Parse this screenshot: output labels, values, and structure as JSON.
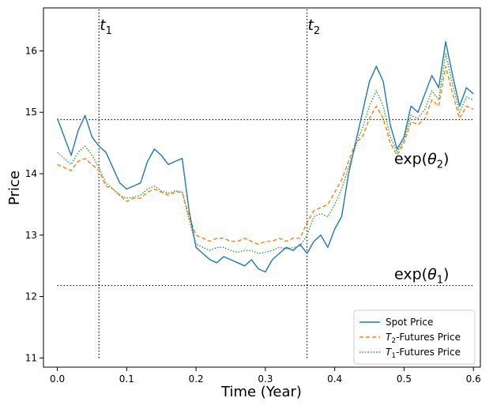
{
  "chart_data": {
    "type": "line",
    "xlabel": "Time (Year)",
    "ylabel": "Price",
    "xlim": [
      -0.02,
      0.61
    ],
    "ylim": [
      10.85,
      16.7
    ],
    "xticks": [
      "0.0",
      "0.1",
      "0.2",
      "0.3",
      "0.4",
      "0.5",
      "0.6"
    ],
    "yticks": [
      "11",
      "12",
      "13",
      "14",
      "15",
      "16"
    ],
    "grid": false,
    "legend_position": "lower-right",
    "vlines": [
      {
        "x": 0.06,
        "label": "t",
        "sub": "1",
        "y_from": 11.0,
        "y_to": 16.7
      },
      {
        "x": 0.36,
        "label": "t",
        "sub": "2",
        "y_from": 11.0,
        "y_to": 16.7
      }
    ],
    "hlines": [
      {
        "y": 14.88,
        "label": "exp(",
        "sym": "θ",
        "sub": "2",
        "tail": ")"
      },
      {
        "y": 12.18,
        "label": "exp(",
        "sym": "θ",
        "sub": "1",
        "tail": ")"
      }
    ],
    "series": [
      {
        "name": "Spot Price",
        "color": "#1f77b4",
        "style": "solid",
        "x": [
          0.0,
          0.01,
          0.02,
          0.03,
          0.04,
          0.05,
          0.06,
          0.07,
          0.08,
          0.09,
          0.1,
          0.11,
          0.12,
          0.13,
          0.14,
          0.15,
          0.16,
          0.17,
          0.18,
          0.19,
          0.2,
          0.21,
          0.22,
          0.23,
          0.24,
          0.25,
          0.26,
          0.27,
          0.28,
          0.29,
          0.3,
          0.31,
          0.32,
          0.33,
          0.34,
          0.35,
          0.36,
          0.37,
          0.38,
          0.39,
          0.4,
          0.41,
          0.42,
          0.43,
          0.44,
          0.45,
          0.46,
          0.47,
          0.48,
          0.49,
          0.5,
          0.51,
          0.52,
          0.53,
          0.54,
          0.55,
          0.56,
          0.57,
          0.58,
          0.59,
          0.6
        ],
        "values": [
          14.9,
          14.6,
          14.3,
          14.7,
          14.95,
          14.6,
          14.45,
          14.35,
          14.1,
          13.85,
          13.75,
          13.8,
          13.85,
          14.2,
          14.4,
          14.3,
          14.15,
          14.2,
          14.25,
          13.4,
          12.8,
          12.7,
          12.6,
          12.55,
          12.65,
          12.6,
          12.55,
          12.5,
          12.6,
          12.45,
          12.4,
          12.6,
          12.7,
          12.8,
          12.75,
          12.85,
          12.7,
          12.9,
          13.0,
          12.8,
          13.1,
          13.3,
          14.0,
          14.5,
          15.0,
          15.5,
          15.75,
          15.5,
          14.8,
          14.4,
          14.6,
          15.1,
          15.0,
          15.3,
          15.6,
          15.4,
          16.15,
          15.6,
          15.1,
          15.4,
          15.3
        ]
      },
      {
        "name": "T2-Futures Price",
        "label_base": "T",
        "label_sub": "2",
        "label_tail": "-Futures Price",
        "color": "#ff7f0e",
        "style": "dashed",
        "x": [
          0.0,
          0.01,
          0.02,
          0.03,
          0.04,
          0.05,
          0.06,
          0.07,
          0.08,
          0.09,
          0.1,
          0.11,
          0.12,
          0.13,
          0.14,
          0.15,
          0.16,
          0.17,
          0.18,
          0.19,
          0.2,
          0.21,
          0.22,
          0.23,
          0.24,
          0.25,
          0.26,
          0.27,
          0.28,
          0.29,
          0.3,
          0.31,
          0.32,
          0.33,
          0.34,
          0.35,
          0.36,
          0.37,
          0.38,
          0.39,
          0.4,
          0.41,
          0.42,
          0.43,
          0.44,
          0.45,
          0.46,
          0.47,
          0.48,
          0.49,
          0.5,
          0.51,
          0.52,
          0.53,
          0.54,
          0.55,
          0.56,
          0.57,
          0.58,
          0.59,
          0.6
        ],
        "values": [
          14.15,
          14.1,
          14.05,
          14.2,
          14.25,
          14.15,
          14.05,
          13.8,
          13.75,
          13.65,
          13.55,
          13.6,
          13.6,
          13.7,
          13.75,
          13.7,
          13.65,
          13.7,
          13.7,
          13.3,
          13.0,
          12.95,
          12.9,
          12.95,
          12.95,
          12.9,
          12.9,
          12.95,
          12.9,
          12.85,
          12.9,
          12.9,
          12.95,
          12.9,
          12.95,
          12.95,
          13.2,
          13.4,
          13.45,
          13.5,
          13.7,
          13.9,
          14.2,
          14.5,
          14.6,
          14.9,
          15.1,
          14.9,
          14.5,
          14.3,
          14.5,
          14.85,
          14.8,
          14.9,
          15.2,
          15.1,
          15.75,
          15.3,
          14.9,
          15.1,
          15.05
        ]
      },
      {
        "name": "T1-Futures Price",
        "label_base": "T",
        "label_sub": "1",
        "label_tail": "-Futures Price",
        "color": "#2ca02c",
        "style": "dotted",
        "x": [
          0.0,
          0.01,
          0.02,
          0.03,
          0.04,
          0.05,
          0.06,
          0.07,
          0.08,
          0.09,
          0.1,
          0.11,
          0.12,
          0.13,
          0.14,
          0.15,
          0.16,
          0.17,
          0.18,
          0.19,
          0.2,
          0.21,
          0.22,
          0.23,
          0.24,
          0.25,
          0.26,
          0.27,
          0.28,
          0.29,
          0.3,
          0.31,
          0.32,
          0.33,
          0.34,
          0.35,
          0.36,
          0.37,
          0.38,
          0.39,
          0.4,
          0.41,
          0.42,
          0.43,
          0.44,
          0.45,
          0.46,
          0.47,
          0.48,
          0.49,
          0.5,
          0.51,
          0.52,
          0.53,
          0.54,
          0.55,
          0.56,
          0.57,
          0.58,
          0.59,
          0.6
        ],
        "values": [
          14.35,
          14.25,
          14.15,
          14.35,
          14.45,
          14.3,
          14.1,
          13.85,
          13.75,
          13.65,
          13.6,
          13.62,
          13.65,
          13.75,
          13.8,
          13.72,
          13.68,
          13.72,
          13.7,
          13.25,
          12.85,
          12.8,
          12.75,
          12.8,
          12.8,
          12.75,
          12.72,
          12.75,
          12.75,
          12.7,
          12.72,
          12.75,
          12.8,
          12.78,
          12.8,
          12.82,
          13.0,
          13.3,
          13.35,
          13.3,
          13.5,
          13.75,
          14.1,
          14.45,
          14.75,
          15.1,
          15.35,
          15.1,
          14.6,
          14.35,
          14.55,
          14.95,
          14.9,
          15.05,
          15.35,
          15.2,
          15.95,
          15.45,
          15.0,
          15.25,
          15.2
        ]
      }
    ]
  }
}
